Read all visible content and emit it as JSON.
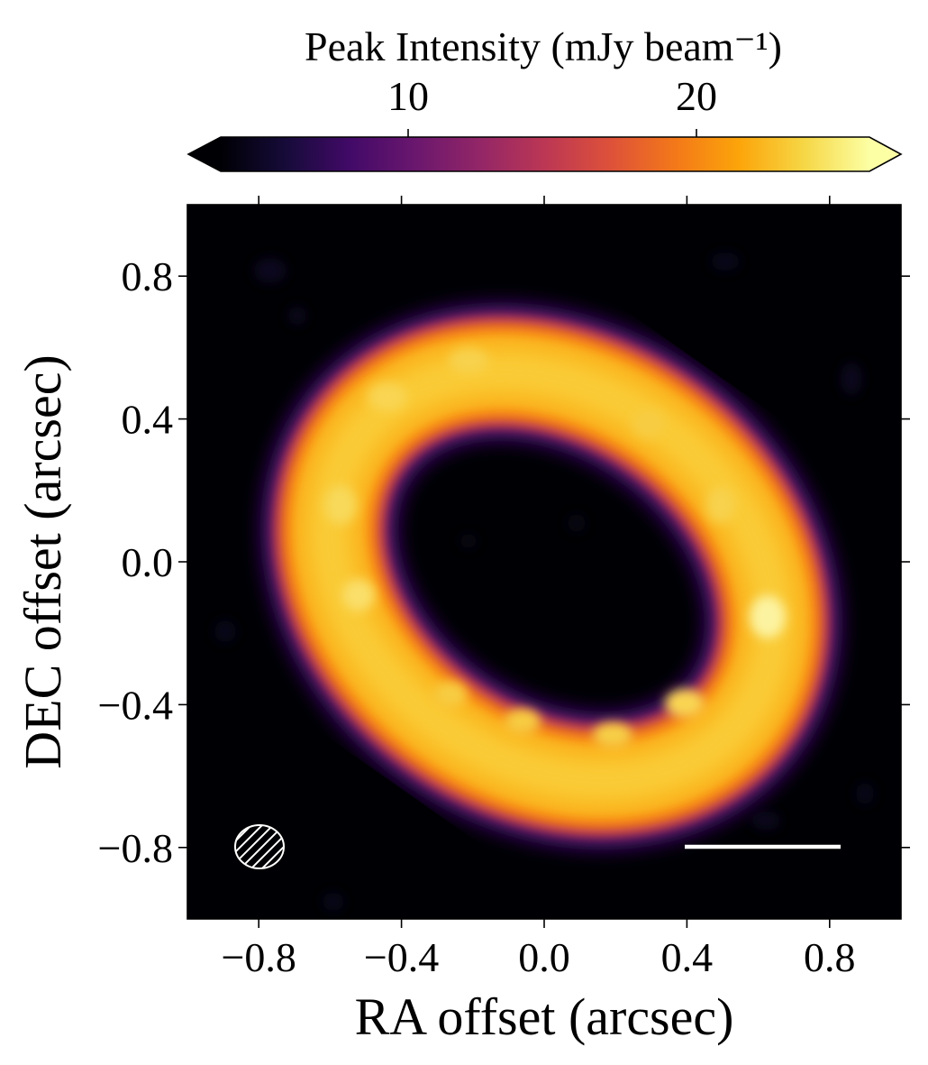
{
  "chart_data": {
    "type": "heatmap",
    "title": "",
    "xlabel": "RA offset (arcsec)",
    "ylabel": "DEC offset (arcsec)",
    "xlim": [
      -1.0,
      1.0
    ],
    "ylim": [
      -1.0,
      1.0
    ],
    "x_ticks": [
      -0.8,
      -0.4,
      0.0,
      0.4,
      0.8
    ],
    "y_ticks": [
      -0.8,
      -0.4,
      0.0,
      0.4,
      0.8
    ],
    "x_tick_labels": [
      "−0.8",
      "−0.4",
      "0.0",
      "0.4",
      "0.8"
    ],
    "y_tick_labels": [
      "−0.8",
      "−0.4",
      "0.0",
      "0.4",
      "0.8"
    ],
    "colorbar": {
      "label": "Peak Intensity (mJy beam⁻¹)",
      "colormap": "inferno",
      "range": [
        3.5,
        26
      ],
      "ticks": [
        10,
        20
      ],
      "tick_labels": [
        "10",
        "20"
      ],
      "extend": "both"
    },
    "ring": {
      "center_arcsec": [
        0.02,
        -0.04
      ],
      "semi_major_arcsec": 0.67,
      "semi_minor_arcsec": 0.52,
      "position_angle_deg": 35,
      "width_arcsec": 0.27,
      "peak_mJy_per_beam": 25,
      "bright_spot_arcsec": [
        0.63,
        -0.16
      ]
    },
    "beam": {
      "center_arcsec": [
        -0.8,
        -0.8
      ],
      "major_arcsec": 0.14,
      "minor_arcsec": 0.12,
      "hatched": true
    },
    "scale_bar": {
      "from_arcsec": [
        0.4,
        -0.8
      ],
      "to_arcsec": [
        0.83,
        -0.8
      ],
      "color": "#ffffff"
    },
    "grid": false,
    "background_color": "#000004"
  }
}
